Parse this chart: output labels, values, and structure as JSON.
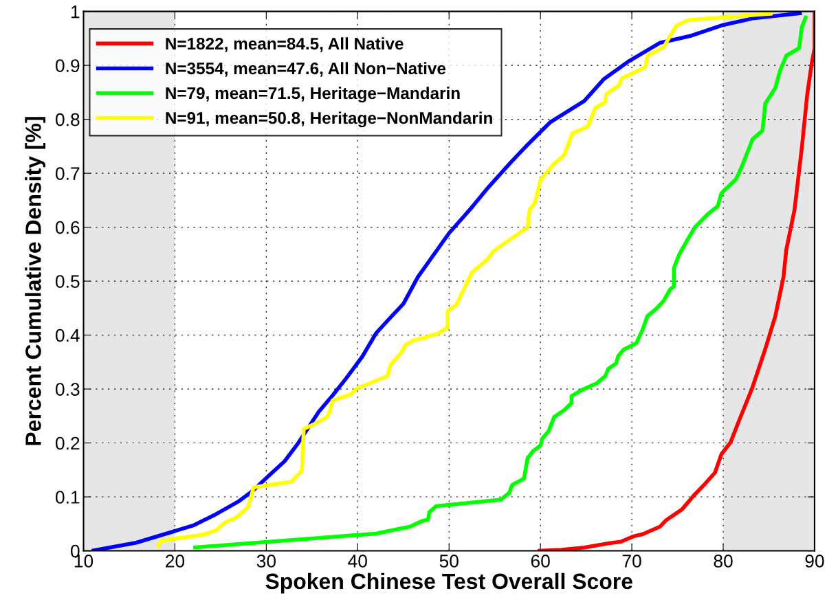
{
  "chart_data": {
    "type": "line",
    "xlabel": "Spoken Chinese Test Overall Score",
    "ylabel": "Percent Cumulative Density [%]",
    "xlim": [
      10,
      90
    ],
    "xticks": [
      10,
      20,
      30,
      40,
      50,
      60,
      70,
      80,
      90
    ],
    "ylim": [
      0,
      1
    ],
    "yticks": [
      0,
      0.1,
      0.2,
      0.3,
      0.4,
      0.5,
      0.6,
      0.7,
      0.8,
      0.9,
      1
    ],
    "grid": true,
    "legend": "top left",
    "line_style": "solid",
    "marker": "none",
    "bands": [
      {
        "axis": "x",
        "from": 10,
        "to": 20,
        "color": "#e6e6e6"
      },
      {
        "axis": "x",
        "from": 80,
        "to": 90,
        "color": "#e6e6e6"
      }
    ],
    "series": [
      {
        "name": "N=1822, mean=84.5, All Native",
        "color": "#ff0000",
        "x": [
          59.7,
          62.3,
          64.8,
          67.5,
          68.8,
          70.2,
          71.2,
          73.1,
          73.7,
          75.5,
          76.8,
          78.0,
          79.1,
          79.8,
          80.8,
          81.7,
          83.2,
          84.6,
          85.7,
          86.6,
          86.9,
          87.8,
          88.6,
          89.2,
          89.7,
          90.0,
          90.0
        ],
        "values": [
          0.0,
          0.002,
          0.006,
          0.014,
          0.017,
          0.027,
          0.031,
          0.045,
          0.056,
          0.077,
          0.103,
          0.124,
          0.145,
          0.179,
          0.201,
          0.24,
          0.303,
          0.374,
          0.435,
          0.508,
          0.558,
          0.632,
          0.747,
          0.847,
          0.905,
          0.932,
          1.0
        ]
      },
      {
        "name": "N=3554, mean=47.6, All Non−Native",
        "color": "#0000ff",
        "x": [
          10.9,
          15.75,
          20.25,
          22.0,
          24.5,
          27.0,
          28.5,
          30.25,
          32.0,
          33.5,
          35.75,
          37.25,
          38.75,
          40.5,
          42.0,
          43.5,
          45.0,
          46.6,
          50.0,
          52.5,
          54.3,
          56.8,
          58.6,
          61.1,
          64.8,
          66.9,
          69.7,
          73.1,
          76.5,
          79.8,
          83.2,
          88.6
        ],
        "values": [
          0.0,
          0.015,
          0.038,
          0.047,
          0.068,
          0.092,
          0.111,
          0.139,
          0.166,
          0.2,
          0.258,
          0.288,
          0.32,
          0.36,
          0.403,
          0.431,
          0.458,
          0.508,
          0.589,
          0.637,
          0.674,
          0.721,
          0.753,
          0.795,
          0.834,
          0.874,
          0.908,
          0.942,
          0.955,
          0.974,
          0.987,
          0.997
        ]
      },
      {
        "name": "N=79, mean=71.5, Heritage−Mandarin",
        "color": "#00ff00",
        "x": [
          22.0,
          42.0,
          45.75,
          47.0,
          47.7,
          47.85,
          48.6,
          55.7,
          56.6,
          56.9,
          58.2,
          58.6,
          59.2,
          60.0,
          60.2,
          60.9,
          61.5,
          62.6,
          63.4,
          63.4,
          64.5,
          66.2,
          67.1,
          67.4,
          68.3,
          68.5,
          69.1,
          70.5,
          71.2,
          71.7,
          72.8,
          73.5,
          74.2,
          74.6,
          74.6,
          75.2,
          76.0,
          76.9,
          78.3,
          79.4,
          79.8,
          81.4,
          82.0,
          82.8,
          83.2,
          84.3,
          84.6,
          85.7,
          86.2,
          86.9,
          88.3,
          88.6,
          89.1
        ],
        "values": [
          0.006,
          0.032,
          0.045,
          0.055,
          0.058,
          0.072,
          0.083,
          0.095,
          0.108,
          0.122,
          0.134,
          0.172,
          0.185,
          0.195,
          0.208,
          0.222,
          0.248,
          0.261,
          0.274,
          0.287,
          0.298,
          0.311,
          0.324,
          0.337,
          0.348,
          0.361,
          0.373,
          0.385,
          0.411,
          0.435,
          0.451,
          0.464,
          0.485,
          0.49,
          0.524,
          0.55,
          0.574,
          0.6,
          0.624,
          0.639,
          0.663,
          0.689,
          0.711,
          0.745,
          0.763,
          0.779,
          0.829,
          0.858,
          0.889,
          0.918,
          0.932,
          0.971,
          0.992
        ]
      },
      {
        "name": "N=91, mean=50.8, Heritage−NonMandarin",
        "color": "#ffff00",
        "x": [
          18.1,
          18.5,
          23.1,
          24.5,
          25.5,
          26.75,
          28.0,
          28.25,
          28.6,
          29.0,
          32.75,
          33.9,
          34.1,
          35.5,
          36.6,
          37.0,
          37.25,
          39.25,
          39.9,
          43.25,
          43.6,
          44.75,
          45.25,
          46.1,
          47.0,
          48.8,
          49.85,
          49.85,
          50.8,
          51.4,
          52.5,
          54.3,
          54.8,
          58.6,
          58.8,
          59.4,
          60.0,
          61.4,
          62.6,
          63.5,
          65.2,
          66.0,
          67.1,
          67.2,
          68.6,
          68.9,
          71.5,
          71.7,
          73.5,
          74.2,
          74.9,
          76.2,
          85.4
        ],
        "values": [
          0.006,
          0.019,
          0.03,
          0.038,
          0.053,
          0.062,
          0.081,
          0.094,
          0.117,
          0.119,
          0.128,
          0.149,
          0.226,
          0.237,
          0.247,
          0.26,
          0.279,
          0.29,
          0.301,
          0.324,
          0.345,
          0.367,
          0.382,
          0.39,
          0.394,
          0.403,
          0.414,
          0.445,
          0.456,
          0.477,
          0.516,
          0.542,
          0.555,
          0.6,
          0.632,
          0.645,
          0.687,
          0.716,
          0.734,
          0.774,
          0.787,
          0.821,
          0.832,
          0.847,
          0.863,
          0.876,
          0.897,
          0.918,
          0.934,
          0.955,
          0.974,
          0.984,
          0.996
        ]
      }
    ]
  }
}
